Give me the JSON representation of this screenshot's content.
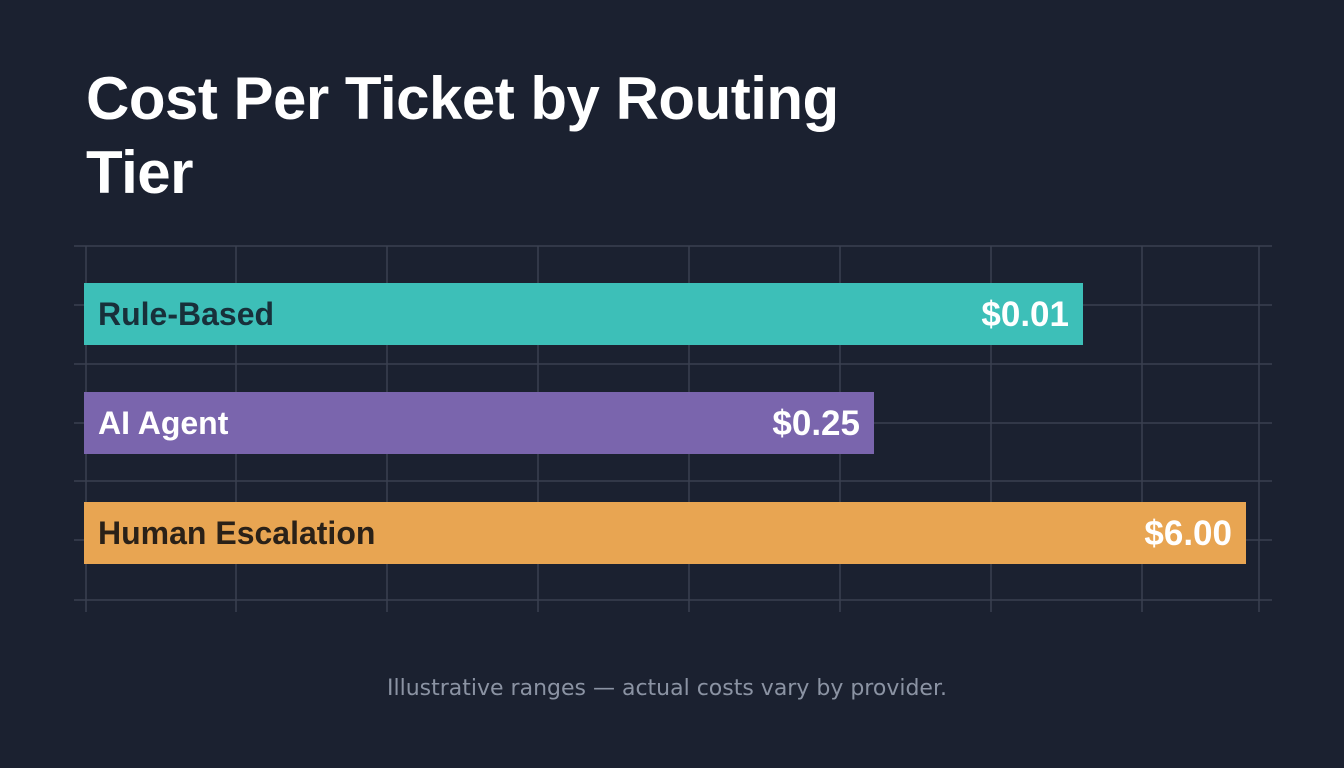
{
  "title": "Cost Per Ticket by Routing Tier",
  "footnote": "Illustrative ranges — actual costs vary by provider.",
  "colors": {
    "background": "#1b2130",
    "grid": "#3a4150",
    "title": "#ffffff"
  },
  "chart_data": {
    "type": "bar",
    "orientation": "horizontal",
    "categories": [
      "Rule-Based",
      "AI Agent",
      "Human Escalation"
    ],
    "values": [
      0.01,
      0.25,
      6.0
    ],
    "value_labels": [
      "$0.01",
      "$0.25",
      "$6.00"
    ],
    "bar_fill_fraction": [
      0.86,
      0.68,
      1.0
    ],
    "bar_colors": [
      "#3dbfb8",
      "#7a65ad",
      "#e8a552"
    ],
    "label_colors": [
      "#18303a",
      "#ffffff",
      "#2a2118"
    ],
    "value_colors": [
      "#ffffff",
      "#ffffff",
      "#ffffff"
    ],
    "xlabel": "",
    "ylabel": "",
    "grid": true,
    "legend": "none"
  }
}
